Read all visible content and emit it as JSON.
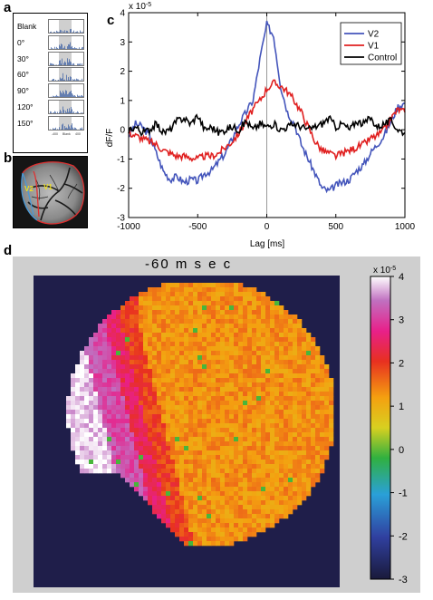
{
  "panel_labels": {
    "a": "a",
    "b": "b",
    "c": "c",
    "d": "d"
  },
  "panel_a": {
    "conditions": [
      "Blank",
      "0°",
      "30°",
      "60°",
      "90°",
      "120°",
      "150°"
    ],
    "axis_footer": [
      "-400",
      "Blank",
      "400"
    ]
  },
  "panel_b": {
    "labels": [
      "V2",
      "V1"
    ]
  },
  "colors": {
    "v2": "#4455bb",
    "v1": "#e02020",
    "control": "#000000",
    "map_background": "#1f1e4a"
  },
  "chart_data": [
    {
      "type": "line",
      "xlabel": "Lag [ms]",
      "ylabel": "dF/F",
      "exponent_label": "x 10",
      "exponent_power": "-5",
      "xlim": [
        -1000,
        1000
      ],
      "ylim": [
        -3,
        4
      ],
      "xticks": [
        "-1000",
        "-500",
        "0",
        "500",
        "1000"
      ],
      "yticks": [
        "4",
        "3",
        "2",
        "1",
        "0",
        "-1",
        "-2",
        "-3"
      ],
      "legend_position": "top-right",
      "vertical_line_at": 0,
      "series": [
        {
          "name": "V2",
          "color": "#4455bb",
          "x": [
            -1000,
            -950,
            -900,
            -850,
            -800,
            -750,
            -700,
            -650,
            -600,
            -550,
            -500,
            -450,
            -400,
            -350,
            -300,
            -250,
            -200,
            -150,
            -100,
            -50,
            0,
            50,
            100,
            150,
            200,
            250,
            300,
            350,
            400,
            450,
            500,
            550,
            600,
            650,
            700,
            750,
            800,
            850,
            900,
            950,
            1000
          ],
          "y": [
            -0.2,
            0.2,
            0.1,
            -0.2,
            -0.8,
            -1.4,
            -1.7,
            -1.6,
            -1.8,
            -1.7,
            -1.75,
            -1.5,
            -1.4,
            -1.1,
            -0.8,
            -0.3,
            0.2,
            0.6,
            1.0,
            2.4,
            3.6,
            3.2,
            1.5,
            0.6,
            0.2,
            -0.5,
            -1.0,
            -1.5,
            -2.0,
            -2.1,
            -1.9,
            -1.8,
            -1.7,
            -1.4,
            -1.2,
            -0.8,
            -0.5,
            -0.2,
            0.3,
            0.8,
            0.9
          ]
        },
        {
          "name": "V1",
          "color": "#e02020",
          "x": [
            -1000,
            -950,
            -900,
            -850,
            -800,
            -750,
            -700,
            -650,
            -600,
            -550,
            -500,
            -450,
            -400,
            -350,
            -300,
            -250,
            -200,
            -150,
            -100,
            -50,
            0,
            50,
            100,
            150,
            200,
            250,
            300,
            350,
            400,
            450,
            500,
            550,
            600,
            650,
            700,
            750,
            800,
            850,
            900,
            950,
            1000
          ],
          "y": [
            -0.1,
            -0.2,
            -0.3,
            -0.4,
            -0.5,
            -0.7,
            -0.8,
            -0.9,
            -0.9,
            -0.95,
            -1.0,
            -0.9,
            -0.9,
            -0.8,
            -0.6,
            -0.4,
            -0.1,
            0.3,
            0.7,
            1.0,
            1.4,
            1.6,
            1.5,
            1.3,
            1.0,
            0.6,
            0.1,
            -0.4,
            -0.7,
            -0.8,
            -0.9,
            -0.8,
            -0.7,
            -0.6,
            -0.5,
            -0.3,
            -0.2,
            0.0,
            0.4,
            0.7,
            0.6
          ]
        },
        {
          "name": "Control",
          "color": "#000000",
          "x": [
            -1000,
            -950,
            -900,
            -850,
            -800,
            -750,
            -700,
            -650,
            -600,
            -550,
            -500,
            -450,
            -400,
            -350,
            -300,
            -250,
            -200,
            -150,
            -100,
            -50,
            0,
            50,
            100,
            150,
            200,
            250,
            300,
            350,
            400,
            450,
            500,
            550,
            600,
            650,
            700,
            750,
            800,
            850,
            900,
            950,
            1000
          ],
          "y": [
            0.0,
            0.1,
            -0.1,
            0.0,
            0.2,
            -0.1,
            0.0,
            0.3,
            0.4,
            0.2,
            0.5,
            0.0,
            0.1,
            -0.1,
            0.0,
            0.1,
            0.0,
            0.3,
            0.0,
            0.2,
            0.1,
            0.2,
            0.0,
            0.1,
            0.2,
            0.1,
            0.0,
            0.1,
            0.2,
            0.4,
            0.1,
            0.2,
            0.0,
            0.3,
            0.2,
            0.4,
            0.1,
            0.2,
            0.3,
            0.0,
            -0.1
          ]
        }
      ]
    },
    {
      "type": "heatmap",
      "title": "-60 m s e c",
      "colorbar_ticks": [
        "4",
        "3",
        "2",
        "1",
        "0",
        "-1",
        "-2",
        "-3"
      ],
      "colorbar_exponent_label": "x 10",
      "colorbar_exponent_power": "-5",
      "zlim": [
        -3,
        4
      ],
      "approx_regions": [
        {
          "region": "lateral edge",
          "value": 3.8
        },
        {
          "region": "V2 strip",
          "value": 3.0
        },
        {
          "region": "border",
          "value": 2.0
        },
        {
          "region": "V1 bulk",
          "value": 1.3
        }
      ]
    }
  ]
}
